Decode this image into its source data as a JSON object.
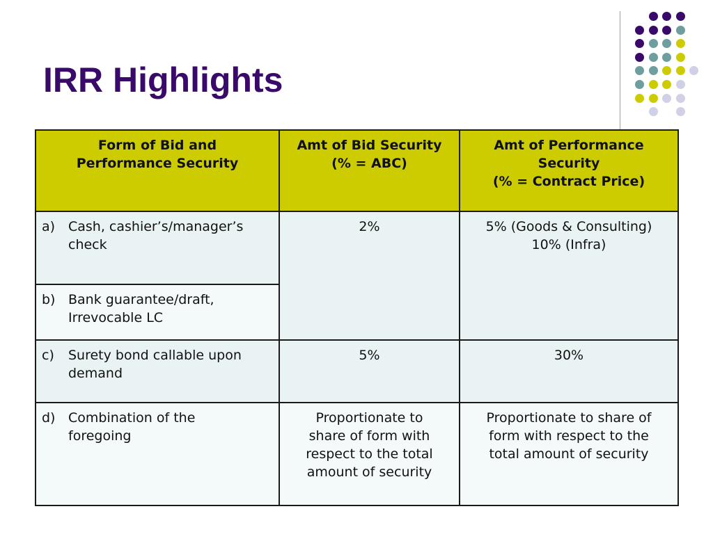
{
  "slide": {
    "title": "IRR Highlights"
  },
  "colors": {
    "title": "#3a0a6a",
    "header_bg": "#cccc00",
    "cell_bg": "#e9f3f3",
    "dot_purple": "#3a0a6a",
    "dot_teal": "#6e9e9e",
    "dot_yellow": "#cccc00",
    "dot_lavender": "#d0d0e6"
  },
  "table": {
    "headers": [
      {
        "lines": [
          "Form of Bid and",
          "Performance Security"
        ]
      },
      {
        "lines": [
          "Amt of Bid Security",
          "(% = ABC)"
        ]
      },
      {
        "lines": [
          "Amt of Performance",
          "Security",
          "(% = Contract Price)"
        ]
      }
    ],
    "rows": [
      {
        "label": "a)",
        "form": [
          "Cash, cashier’s/manager’s",
          "check"
        ],
        "bid_security": "2%",
        "performance_security": [
          "5% (Goods & Consulting)",
          "10% (Infra)"
        ]
      },
      {
        "label": "b)",
        "form": [
          "Bank guarantee/draft,",
          "Irrevocable LC"
        ]
      },
      {
        "label": "c)",
        "form": [
          "Surety bond callable upon",
          "demand"
        ],
        "bid_security": "5%",
        "performance_security": [
          "30%"
        ]
      },
      {
        "label": "d)",
        "form": [
          "Combination of the",
          "foregoing"
        ],
        "bid_security": [
          "Proportionate to",
          "share of form with",
          "respect to the total",
          "amount of security"
        ],
        "performance_security": [
          "Proportionate to share of",
          "form with respect to the",
          "total amount of security"
        ]
      }
    ]
  }
}
